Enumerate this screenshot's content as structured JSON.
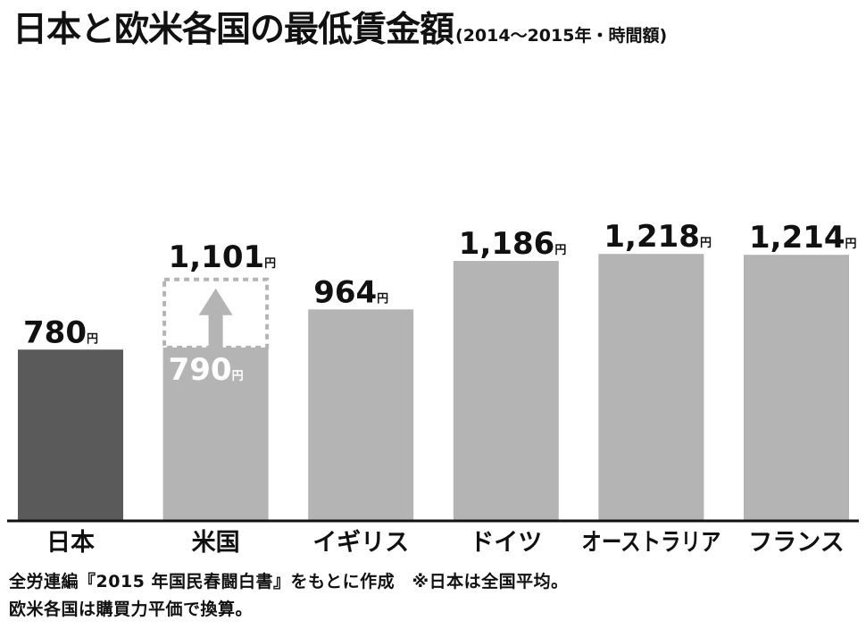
{
  "title": "日本と欧米各国の最低賃金額",
  "subtitle": "(2014〜2015年・時間額)",
  "chart_data": {
    "type": "bar",
    "title": "日本と欧米各国の最低賃金額",
    "subtitle": "(2014〜2015年・時間額)",
    "unit": "円",
    "categories": [
      "日本",
      "米国",
      "イギリス",
      "ドイツ",
      "オーストラリア",
      "フランス"
    ],
    "values": [
      780,
      790,
      964,
      1186,
      1218,
      1214
    ],
    "value_labels": [
      "780",
      "790",
      "964",
      "1,186",
      "1,218",
      "1,214"
    ],
    "highlight": {
      "category": "米国",
      "to_value": 1101,
      "label": "1,101"
    },
    "colors": {
      "japan": "#5a5a5a",
      "others": "#b4b4b4",
      "dashed": "#b4b4b4"
    },
    "ylim": [
      0,
      1300
    ],
    "grid": false,
    "legend": "none"
  },
  "footnote": {
    "line1": "全労連編『2015 年国民春闘白書』をもとに作成　※日本は全国平均。",
    "line2": "欧米各国は購買力平価で換算。"
  }
}
